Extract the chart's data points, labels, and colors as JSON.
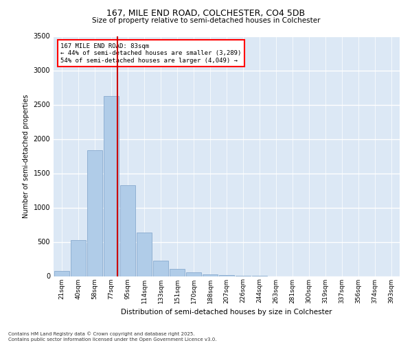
{
  "title_line1": "167, MILE END ROAD, COLCHESTER, CO4 5DB",
  "title_line2": "Size of property relative to semi-detached houses in Colchester",
  "xlabel": "Distribution of semi-detached houses by size in Colchester",
  "ylabel": "Number of semi-detached properties",
  "background_color": "#dce8f5",
  "bar_color": "#b0cce8",
  "bar_edge_color": "#88aace",
  "categories": [
    "21sqm",
    "40sqm",
    "58sqm",
    "77sqm",
    "95sqm",
    "114sqm",
    "133sqm",
    "151sqm",
    "170sqm",
    "188sqm",
    "207sqm",
    "226sqm",
    "244sqm",
    "263sqm",
    "281sqm",
    "300sqm",
    "319sqm",
    "337sqm",
    "356sqm",
    "374sqm",
    "393sqm"
  ],
  "values": [
    75,
    530,
    1840,
    2630,
    1330,
    640,
    230,
    110,
    60,
    30,
    15,
    5,
    2,
    0,
    0,
    0,
    0,
    0,
    0,
    0,
    0
  ],
  "ylim": [
    0,
    3500
  ],
  "yticks": [
    0,
    500,
    1000,
    1500,
    2000,
    2500,
    3000,
    3500
  ],
  "annotation_text_line1": "167 MILE END ROAD: 83sqm",
  "annotation_text_line2": "← 44% of semi-detached houses are smaller (3,289)",
  "annotation_text_line3": "54% of semi-detached houses are larger (4,049) →",
  "vline_color": "#cc0000",
  "vline_x_index": 3.37,
  "footnote_line1": "Contains HM Land Registry data © Crown copyright and database right 2025.",
  "footnote_line2": "Contains public sector information licensed under the Open Government Licence v3.0."
}
